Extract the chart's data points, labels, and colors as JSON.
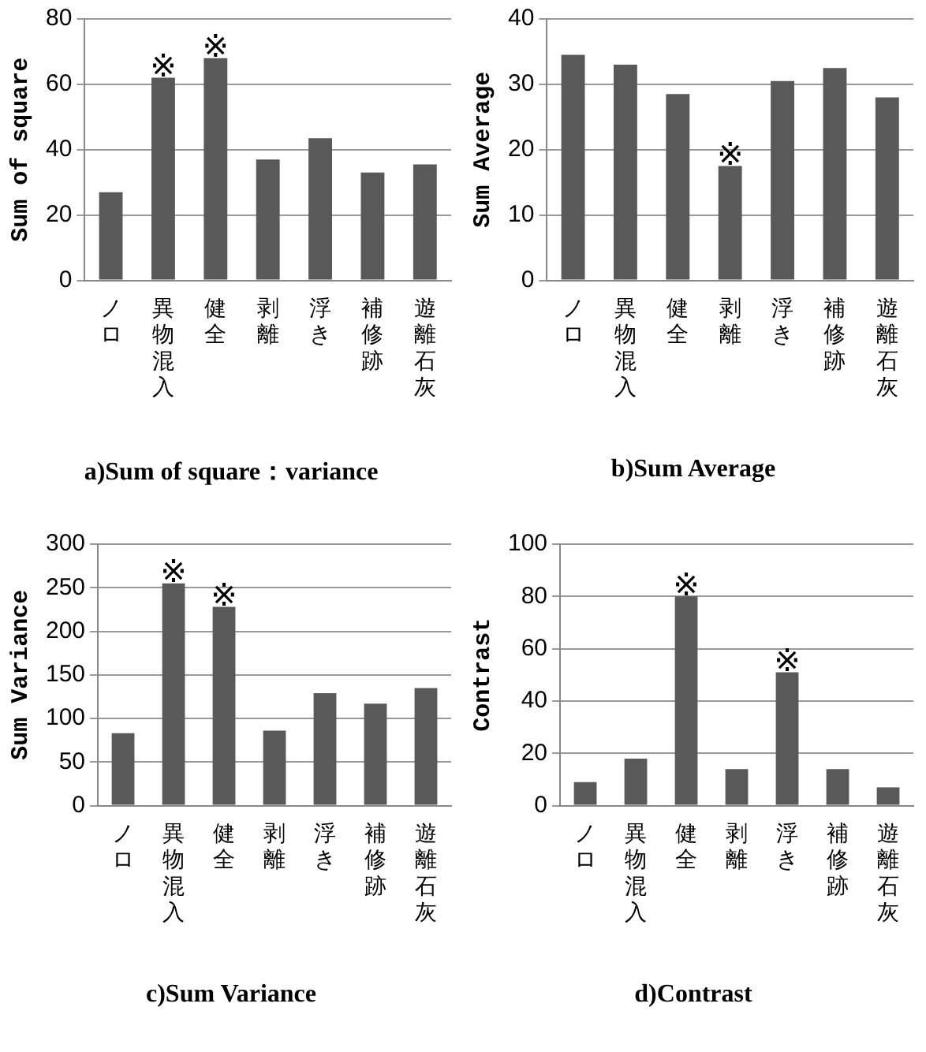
{
  "chart_data": [
    {
      "type": "bar",
      "title": "a)Sum of square：variance",
      "ylabel": "Sum of square",
      "categories": [
        "ノロ",
        "異物混入",
        "健全",
        "剥離",
        "浮き",
        "補修跡",
        "遊離石灰"
      ],
      "values": [
        27,
        62,
        68,
        37,
        43.5,
        33,
        35.5
      ],
      "color": "#595959",
      "ylim": [
        0,
        80
      ],
      "yticks": [
        0,
        20,
        40,
        60,
        80
      ],
      "grid": "y",
      "annotations": [
        {
          "text": "※",
          "x": "異物混入",
          "y": 62
        },
        {
          "text": "※",
          "x": "健全",
          "y": 68
        }
      ]
    },
    {
      "type": "bar",
      "title": "b)Sum Average",
      "ylabel": "Sum Average",
      "categories": [
        "ノロ",
        "異物混入",
        "健全",
        "剥離",
        "浮き",
        "補修跡",
        "遊離石灰"
      ],
      "values": [
        34.5,
        33,
        28.5,
        17.5,
        30.5,
        32.5,
        28
      ],
      "color": "#595959",
      "ylim": [
        0,
        40
      ],
      "yticks": [
        0,
        10,
        20,
        30,
        40
      ],
      "grid": "y",
      "annotations": [
        {
          "text": "※",
          "x": "剥離",
          "y": 17.5
        }
      ]
    },
    {
      "type": "bar",
      "title": "c)Sum Variance",
      "ylabel": "Sum Variance",
      "categories": [
        "ノロ",
        "異物混入",
        "健全",
        "剥離",
        "浮き",
        "補修跡",
        "遊離石灰"
      ],
      "values": [
        83,
        255,
        228,
        86,
        129,
        117,
        135
      ],
      "color": "#595959",
      "ylim": [
        0,
        300
      ],
      "yticks": [
        0,
        50,
        100,
        150,
        200,
        250,
        300
      ],
      "grid": "y",
      "annotations": [
        {
          "text": "※",
          "x": "異物混入",
          "y": 255
        },
        {
          "text": "※",
          "x": "健全",
          "y": 228
        }
      ]
    },
    {
      "type": "bar",
      "title": "d)Contrast",
      "ylabel": "Contrast",
      "categories": [
        "ノロ",
        "異物混入",
        "健全",
        "剥離",
        "浮き",
        "補修跡",
        "遊離石灰"
      ],
      "values": [
        9,
        18,
        80,
        14,
        51,
        14,
        7
      ],
      "color": "#595959",
      "ylim": [
        0,
        100
      ],
      "yticks": [
        0,
        20,
        40,
        60,
        80,
        100
      ],
      "grid": "y",
      "annotations": [
        {
          "text": "※",
          "x": "健全",
          "y": 80
        },
        {
          "text": "※",
          "x": "浮き",
          "y": 51
        }
      ]
    }
  ]
}
